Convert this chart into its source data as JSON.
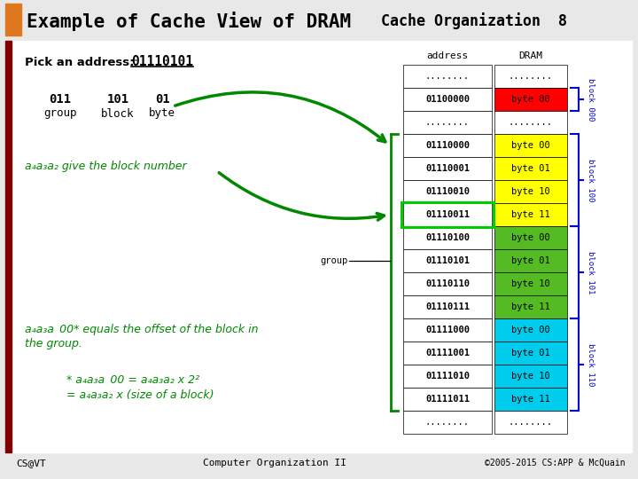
{
  "title_left": "Example of Cache View of DRAM",
  "title_right": "Cache Organization  8",
  "bg_color": "#e8e8e8",
  "orange_rect": "#e07820",
  "dark_red_bar": "#800000",
  "pick_label": "Pick an address:",
  "address_val": "01110101",
  "group_label": "011",
  "block_label": "101",
  "byte_label": "01",
  "group_word": "group",
  "block_word": "block",
  "byte_word": "byte",
  "a4a3a2_text": "a₄a₃a₂ give the block number",
  "offset_text1": "a₄a₃a 00* equals the offset of the block in",
  "offset_text2": "the group.",
  "formula1": "* a₄a₃a 00 = a₄a₃a₂ x 2²",
  "formula2": "= a₄a₃a₂ x (size of a block)",
  "footer_left": "CS@VT",
  "footer_center": "Computer Organization II",
  "footer_right": "©2005-2015 CS:APP & McQuain",
  "col_address": "address",
  "col_dram": "DRAM",
  "green": "#008800",
  "blue": "#0000cc",
  "rows": [
    {
      "addr": "........",
      "byte": "........",
      "color": "#ffffff"
    },
    {
      "addr": "01100000",
      "byte": "byte 00",
      "color": "#ff0000"
    },
    {
      "addr": "........",
      "byte": "........",
      "color": "#ffffff"
    },
    {
      "addr": "01110000",
      "byte": "byte 00",
      "color": "#ffff00"
    },
    {
      "addr": "01110001",
      "byte": "byte 01",
      "color": "#ffff00"
    },
    {
      "addr": "01110010",
      "byte": "byte 10",
      "color": "#ffff00"
    },
    {
      "addr": "01110011",
      "byte": "byte 11",
      "color": "#ffff00"
    },
    {
      "addr": "01110100",
      "byte": "byte 00",
      "color": "#55bb22"
    },
    {
      "addr": "01110101",
      "byte": "byte 01",
      "color": "#55bb22"
    },
    {
      "addr": "01110110",
      "byte": "byte 10",
      "color": "#55bb22"
    },
    {
      "addr": "01110111",
      "byte": "byte 11",
      "color": "#55bb22"
    },
    {
      "addr": "01111000",
      "byte": "byte 00",
      "color": "#00ccee"
    },
    {
      "addr": "01111001",
      "byte": "byte 01",
      "color": "#00ccee"
    },
    {
      "addr": "01111010",
      "byte": "byte 10",
      "color": "#00ccee"
    },
    {
      "addr": "01111011",
      "byte": "byte 11",
      "color": "#00ccee"
    },
    {
      "addr": "........",
      "byte": "........",
      "color": "#ffffff"
    }
  ]
}
